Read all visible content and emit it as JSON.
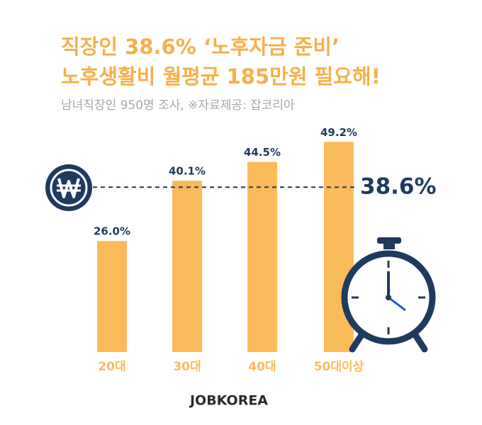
{
  "chart_data": {
    "type": "bar",
    "title": [
      "직장인 38.6% ‘노후자금 준비’",
      "노후생활비 월평균 185만원 필요해!"
    ],
    "subtitle": "남녀직장인 950명 조사, ※자료제공: 잡코리아",
    "categories": [
      "20대",
      "30대",
      "40대",
      "50대이상"
    ],
    "values": [
      26.0,
      40.1,
      44.5,
      49.2
    ],
    "value_labels": [
      "26.0%",
      "40.1%",
      "44.5%",
      "49.2%"
    ],
    "color": "#fbbb5b",
    "ylim": [
      0,
      50
    ],
    "reference_line": {
      "value": 38.6,
      "label": "38.6%",
      "color": "#1f3a5f"
    },
    "brand": "JOBKOREA"
  }
}
